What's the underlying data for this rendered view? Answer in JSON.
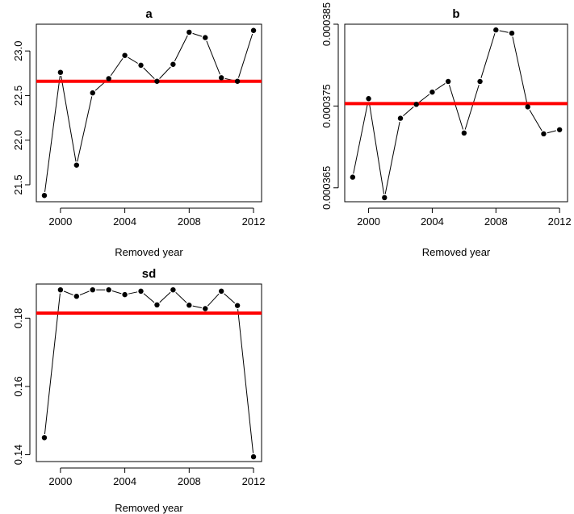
{
  "chart_data": [
    {
      "type": "line",
      "title": "a",
      "xlabel": "Removed year",
      "ylabel": "",
      "x": [
        1999,
        2000,
        2001,
        2002,
        2003,
        2004,
        2005,
        2006,
        2007,
        2008,
        2009,
        2010,
        2011,
        2012
      ],
      "values": [
        21.38,
        22.76,
        21.72,
        22.53,
        22.69,
        22.95,
        22.84,
        22.66,
        22.85,
        23.21,
        23.15,
        22.7,
        22.66,
        23.23
      ],
      "reference_line": 22.66,
      "reference_color": "#ff0000",
      "xticks": [
        2000,
        2004,
        2008,
        2012
      ],
      "xtick_labels": [
        "2000",
        "2004",
        "2008",
        "2012"
      ],
      "yticks": [
        21.5,
        22.0,
        22.5,
        23.0
      ],
      "ytick_labels": [
        "21.5",
        "22.0",
        "22.5",
        "23.0"
      ],
      "xlim": [
        1998.5,
        2012.5
      ],
      "ylim": [
        21.31,
        23.3
      ],
      "grid": false
    },
    {
      "type": "line",
      "title": "b",
      "xlabel": "Removed year",
      "ylabel": "",
      "x": [
        1999,
        2000,
        2001,
        2002,
        2003,
        2004,
        2005,
        2006,
        2007,
        2008,
        2009,
        2010,
        2011,
        2012
      ],
      "values": [
        0.0003663,
        0.0003759,
        0.0003638,
        0.0003735,
        0.0003752,
        0.0003767,
        0.000378,
        0.0003717,
        0.000378,
        0.0003843,
        0.0003839,
        0.0003749,
        0.0003716,
        0.0003721
      ],
      "reference_line": 0.0003753,
      "reference_color": "#ff0000",
      "xticks": [
        2000,
        2004,
        2008,
        2012
      ],
      "xtick_labels": [
        "2000",
        "2004",
        "2008",
        "2012"
      ],
      "yticks": [
        0.000365,
        0.000375,
        0.000385
      ],
      "ytick_labels": [
        "0.000365",
        "0.000375",
        "0.000385"
      ],
      "xlim": [
        1998.5,
        2012.5
      ],
      "ylim": [
        0.0003633,
        0.000385
      ],
      "grid": false
    },
    {
      "type": "line",
      "title": "sd",
      "xlabel": "Removed year",
      "ylabel": "",
      "x": [
        1999,
        2000,
        2001,
        2002,
        2003,
        2004,
        2005,
        2006,
        2007,
        2008,
        2009,
        2010,
        2011,
        2012
      ],
      "values": [
        0.145,
        0.1883,
        0.1864,
        0.1883,
        0.1883,
        0.1869,
        0.1879,
        0.1839,
        0.1883,
        0.1838,
        0.1828,
        0.1879,
        0.1837,
        0.1394
      ],
      "reference_line": 0.1815,
      "reference_color": "#ff0000",
      "xticks": [
        2000,
        2004,
        2008,
        2012
      ],
      "xtick_labels": [
        "2000",
        "2004",
        "2008",
        "2012"
      ],
      "yticks": [
        0.14,
        0.16,
        0.18
      ],
      "ytick_labels": [
        "0.14",
        "0.16",
        "0.18"
      ],
      "xlim": [
        1998.5,
        2012.5
      ],
      "ylim": [
        0.138,
        0.19
      ],
      "grid": false
    }
  ]
}
